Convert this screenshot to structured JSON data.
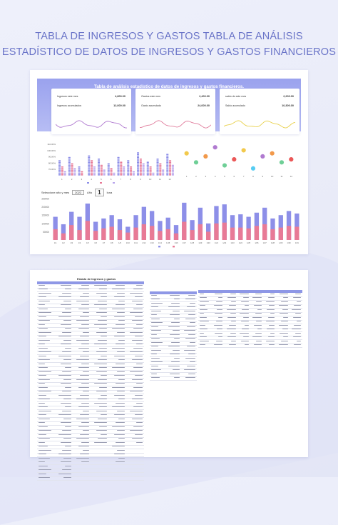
{
  "page": {
    "title_line1": "TABLA DE INGRESOS Y GASTOS TABLA DE ANÁLISIS",
    "title_line2": "ESTADÍSTICO DE DATOS DE INGRESOS Y GASTOS FINANCIEROS"
  },
  "dashboard": {
    "banner_title": "Tabla de análisis estadístico de datos de ingresos y gastos financieros.",
    "kpis": [
      {
        "label1": "Ingresos este mes",
        "value1": "4,800.00",
        "label2": "Ingresos acumulados",
        "value2": "12,000.00",
        "spark_color": "#b07ad0"
      },
      {
        "label1": "Gastos este mes",
        "value1": "2,400.00",
        "label2": "Gasto acumulado",
        "value2": "24,000.00",
        "spark_color": "#e07c9c"
      },
      {
        "label1": "saldo de este mes",
        "value1": "2,200.00",
        "label2": "Saldo acumulado",
        "value2": "10,300.00",
        "spark_color": "#e8d04a"
      }
    ],
    "controls": {
      "select_label": "Seleccione año y mes",
      "year": "2022",
      "year_suffix": "Año",
      "month": "1",
      "month_suffix": "luna"
    },
    "colors": {
      "purple": "#8d8fe8",
      "pink": "#e87a96",
      "lavender": "#b9a6ec"
    }
  },
  "chart_data": [
    {
      "type": "bar",
      "title": "",
      "categories": [
        "1",
        "2",
        "3",
        "4",
        "5",
        "6",
        "7",
        "8",
        "9",
        "10",
        "11",
        "12"
      ],
      "series": [
        {
          "name": "",
          "values": [
            82,
            86,
            70,
            90,
            84,
            76,
            88,
            80,
            95,
            78,
            85,
            92
          ]
        },
        {
          "name": "",
          "values": [
            70,
            75,
            60,
            80,
            72,
            66,
            78,
            70,
            85,
            68,
            75,
            82
          ]
        },
        {
          "name": "",
          "values": [
            60,
            65,
            52,
            70,
            62,
            58,
            68,
            60,
            75,
            58,
            64,
            72
          ]
        }
      ],
      "yticks": [
        "110.00%",
        "100.00%",
        "90.00%",
        "80.00%",
        "70.00%"
      ],
      "legend": [
        "",
        "",
        ""
      ]
    },
    {
      "type": "scatter",
      "categories": [
        "1",
        "2",
        "3",
        "4",
        "5",
        "6",
        "7",
        "8",
        "9",
        "10",
        "11",
        "12"
      ],
      "xlabel": "",
      "values": [
        6,
        3,
        5,
        8,
        2,
        4,
        7,
        1,
        5,
        6,
        3,
        4
      ],
      "colors": [
        "#f2c94c",
        "#6fcf97",
        "#f2994a",
        "#b07ad0",
        "#6fcf97",
        "#eb5757",
        "#f2c94c",
        "#56ccf2",
        "#b07ad0",
        "#f2994a",
        "#6fcf97",
        "#eb5757"
      ]
    },
    {
      "type": "bar",
      "categories": [
        "1/1",
        "1/2",
        "1/3",
        "1/4",
        "1/5",
        "1/6",
        "1/7",
        "1/8",
        "1/9",
        "1/10",
        "1/11",
        "1/12",
        "1/13",
        "1/14",
        "1/15",
        "1/16",
        "1/17",
        "1/18",
        "1/19",
        "1/20",
        "1/21",
        "1/22",
        "1/23",
        "1/24",
        "1/25",
        "1/26",
        "1/27",
        "1/28",
        "1/29",
        "1/30",
        "1/31"
      ],
      "yticks": [
        "250000",
        "200000",
        "150000",
        "100000",
        "50000"
      ],
      "series": [
        {
          "name": "",
          "values": [
            140000,
            95000,
            170000,
            140000,
            220000,
            110000,
            130000,
            150000,
            125000,
            80000,
            150000,
            200000,
            175000,
            115000,
            135000,
            90000,
            225000,
            120000,
            195000,
            100000,
            205000,
            215000,
            150000,
            155000,
            140000,
            165000,
            195000,
            130000,
            150000,
            175000,
            160000
          ]
        },
        {
          "name": "",
          "values": [
            65000,
            40000,
            90000,
            60000,
            115000,
            55000,
            70000,
            80000,
            60000,
            45000,
            75000,
            95000,
            85000,
            55000,
            65000,
            40000,
            110000,
            60000,
            95000,
            50000,
            100000,
            105000,
            75000,
            75000,
            70000,
            85000,
            95000,
            65000,
            75000,
            85000,
            80000
          ]
        }
      ],
      "legend": [
        "",
        ""
      ]
    }
  ],
  "sheet": {
    "title": "Estado de Ingresos y gastos"
  }
}
